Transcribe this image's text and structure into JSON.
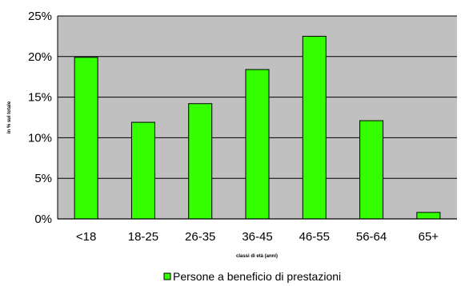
{
  "chart_data": {
    "type": "bar",
    "categories": [
      "<18",
      "18-25",
      "26-35",
      "36-45",
      "46-55",
      "56-64",
      "65+"
    ],
    "series": [
      {
        "name": "Persone a beneficio di prestazioni",
        "values": [
          19.9,
          11.9,
          14.2,
          18.4,
          22.5,
          12.1,
          0.8
        ]
      }
    ],
    "y_tick_labels": [
      "0%",
      "5%",
      "10%",
      "15%",
      "20%",
      "25%"
    ],
    "ylim": [
      0,
      25
    ],
    "ylabel": "in % sul totale",
    "xlabel": "classi di età (anni)",
    "grid": true,
    "legend_position": "bottom",
    "colors": {
      "bar": "#33ff00",
      "bar_stroke": "#000000",
      "plot_bg": "#c0c0c0",
      "grid": "#000000"
    }
  }
}
